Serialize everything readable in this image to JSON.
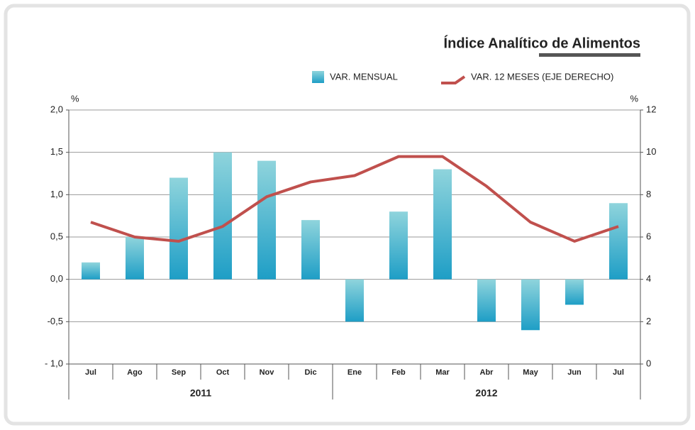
{
  "chart_data": {
    "type": "bar_line",
    "title": "Índice Analítico de Alimentos",
    "ylabel": "%",
    "y2label": "%",
    "categories": [
      "Jul",
      "Ago",
      "Sep",
      "Oct",
      "Nov",
      "Dic",
      "Ene",
      "Feb",
      "Mar",
      "Abr",
      "May",
      "Jun",
      "Jul"
    ],
    "groups": [
      {
        "label": "2011",
        "span": 6
      },
      {
        "label": "2012",
        "span": 7
      }
    ],
    "series": [
      {
        "name": "VAR. MENSUAL",
        "type": "bar",
        "color": "#1e9ec6",
        "values": [
          0.2,
          0.5,
          1.2,
          1.5,
          1.4,
          0.7,
          -0.5,
          0.8,
          1.3,
          -0.5,
          -0.6,
          -0.3,
          0.9
        ]
      },
      {
        "name": "VAR. 12 MESES (EJE DERECHO)",
        "type": "line",
        "axis": "y2",
        "color": "#c0504d",
        "values": [
          6.7,
          6.0,
          5.8,
          6.5,
          7.9,
          8.6,
          8.9,
          9.8,
          9.8,
          8.4,
          6.7,
          5.8,
          6.5
        ]
      }
    ],
    "ylim": [
      -1,
      2
    ],
    "yticks": [
      {
        "value": -1,
        "label": "- 1,0"
      },
      {
        "value": -0.5,
        "label": "-0,5"
      },
      {
        "value": 0,
        "label": "0,0"
      },
      {
        "value": 0.5,
        "label": "0,5"
      },
      {
        "value": 1,
        "label": "1,0"
      },
      {
        "value": 1.5,
        "label": "1,5"
      },
      {
        "value": 2,
        "label": "2,0"
      }
    ],
    "y2lim": [
      0,
      12
    ],
    "y2ticks": [
      0,
      2,
      4,
      6,
      8,
      10,
      12
    ],
    "grid": true
  }
}
